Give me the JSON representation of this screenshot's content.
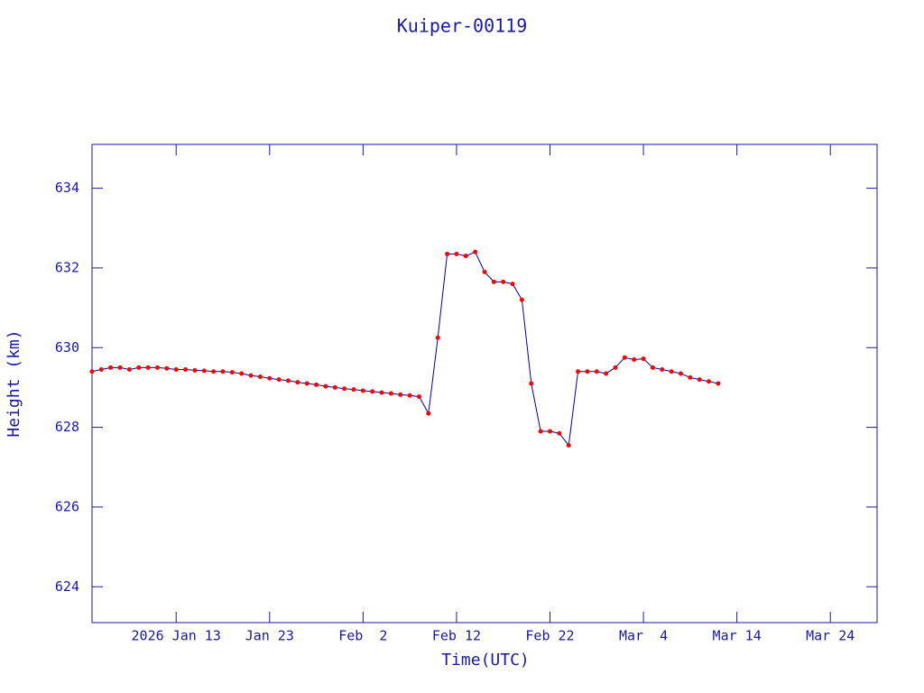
{
  "chart_data": {
    "type": "line",
    "title": "Kuiper-00119",
    "x_label": "Time(UTC)",
    "y_label": "Height (km)",
    "x": [
      "2026-01-04",
      "2026-01-05",
      "2026-01-06",
      "2026-01-07",
      "2026-01-08",
      "2026-01-09",
      "2026-01-10",
      "2026-01-11",
      "2026-01-12",
      "2026-01-13",
      "2026-01-14",
      "2026-01-15",
      "2026-01-16",
      "2026-01-17",
      "2026-01-18",
      "2026-01-19",
      "2026-01-20",
      "2026-01-21",
      "2026-01-22",
      "2026-01-23",
      "2026-01-24",
      "2026-01-25",
      "2026-01-26",
      "2026-01-27",
      "2026-01-28",
      "2026-01-29",
      "2026-01-30",
      "2026-01-31",
      "2026-02-01",
      "2026-02-02",
      "2026-02-03",
      "2026-02-04",
      "2026-02-05",
      "2026-02-06",
      "2026-02-07",
      "2026-02-08",
      "2026-02-09",
      "2026-02-10",
      "2026-02-11",
      "2026-02-12",
      "2026-02-13",
      "2026-02-14",
      "2026-02-15",
      "2026-02-16",
      "2026-02-17",
      "2026-02-18",
      "2026-02-19",
      "2026-02-20",
      "2026-02-21",
      "2026-02-22",
      "2026-02-23",
      "2026-02-24",
      "2026-02-25",
      "2026-02-26",
      "2026-02-27",
      "2026-02-28",
      "2026-03-01",
      "2026-03-02",
      "2026-03-03",
      "2026-03-04",
      "2026-03-05",
      "2026-03-06",
      "2026-03-07",
      "2026-03-08",
      "2026-03-09",
      "2026-03-10",
      "2026-03-11",
      "2026-03-12"
    ],
    "series": [
      {
        "name": "Height",
        "color": "#0000a0",
        "marker_color": "#ff0000",
        "values": [
          629.4,
          629.45,
          629.5,
          629.5,
          629.45,
          629.5,
          629.5,
          629.5,
          629.48,
          629.45,
          629.45,
          629.43,
          629.42,
          629.4,
          629.4,
          629.38,
          629.35,
          629.3,
          629.27,
          629.23,
          629.2,
          629.17,
          629.13,
          629.1,
          629.07,
          629.03,
          629.0,
          628.97,
          628.95,
          628.92,
          628.9,
          628.87,
          628.85,
          628.82,
          628.8,
          628.77,
          628.35,
          630.25,
          632.35,
          632.35,
          632.3,
          632.4,
          631.9,
          631.65,
          631.65,
          631.6,
          631.2,
          629.1,
          627.9,
          627.9,
          627.85,
          627.55,
          629.4,
          629.4,
          629.4,
          629.35,
          629.5,
          629.75,
          629.7,
          629.72,
          629.5,
          629.45,
          629.4,
          629.35,
          629.25,
          629.2,
          629.15,
          629.1
        ]
      }
    ],
    "xlim": [
      "2026-01-04",
      "2026-03-29"
    ],
    "xticks": [
      {
        "value": "2026-01-13",
        "label": "2026 Jan 13"
      },
      {
        "value": "2026-01-23",
        "label": "Jan 23"
      },
      {
        "value": "2026-02-02",
        "label": "Feb  2"
      },
      {
        "value": "2026-02-12",
        "label": "Feb 12"
      },
      {
        "value": "2026-02-22",
        "label": "Feb 22"
      },
      {
        "value": "2026-03-04",
        "label": "Mar  4"
      },
      {
        "value": "2026-03-14",
        "label": "Mar 14"
      },
      {
        "value": "2026-03-24",
        "label": "Mar 24"
      }
    ],
    "ylim": [
      623.1,
      635.1
    ],
    "yticks": [
      624,
      626,
      628,
      630,
      632,
      634
    ],
    "grid": false
  }
}
